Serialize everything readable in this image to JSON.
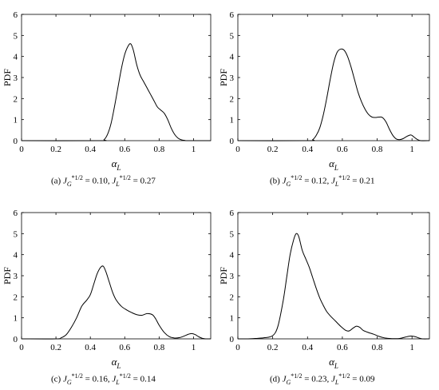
{
  "chart_data": [
    {
      "type": "line",
      "xlabel": "α",
      "xlabel_sub": "L",
      "ylabel": "PDF",
      "xlim": [
        0,
        1.1
      ],
      "ylim": [
        0,
        6
      ],
      "xticks": [
        "0",
        "0.2",
        "0.4",
        "0.6",
        "0.8",
        "1"
      ],
      "yticks": [
        "0",
        "1",
        "2",
        "3",
        "4",
        "5",
        "6"
      ],
      "caption": {
        "label": "(a)",
        "jg": "0.10",
        "jl": "0.27"
      },
      "series": [
        {
          "x": [
            0.45,
            0.48,
            0.5,
            0.52,
            0.54,
            0.56,
            0.58,
            0.6,
            0.62,
            0.635,
            0.65,
            0.67,
            0.69,
            0.71,
            0.73,
            0.75,
            0.77,
            0.79,
            0.81,
            0.83,
            0.85,
            0.87,
            0.89,
            0.91,
            0.93,
            0.95,
            0.97
          ],
          "y": [
            0,
            0.05,
            0.3,
            0.8,
            1.6,
            2.5,
            3.4,
            4.1,
            4.5,
            4.6,
            4.3,
            3.6,
            3.1,
            2.8,
            2.5,
            2.2,
            1.9,
            1.6,
            1.45,
            1.3,
            1.0,
            0.6,
            0.3,
            0.12,
            0.04,
            0.01,
            0
          ]
        }
      ]
    },
    {
      "type": "line",
      "xlabel": "α",
      "xlabel_sub": "L",
      "ylabel": "PDF",
      "xlim": [
        0,
        1.1
      ],
      "ylim": [
        0,
        6
      ],
      "xticks": [
        "0",
        "0.2",
        "0.4",
        "0.6",
        "0.8",
        "1"
      ],
      "yticks": [
        "0",
        "1",
        "2",
        "3",
        "4",
        "5",
        "6"
      ],
      "caption": {
        "label": "(b)",
        "jg": "0.12",
        "jl": "0.21"
      },
      "series": [
        {
          "x": [
            0.4,
            0.43,
            0.45,
            0.47,
            0.49,
            0.51,
            0.53,
            0.55,
            0.57,
            0.59,
            0.61,
            0.63,
            0.65,
            0.67,
            0.69,
            0.71,
            0.73,
            0.75,
            0.77,
            0.79,
            0.81,
            0.83,
            0.85,
            0.87,
            0.89,
            0.91,
            0.93,
            0.95,
            0.97,
            0.99,
            1.0,
            1.01,
            1.03,
            1.05
          ],
          "y": [
            0,
            0.05,
            0.25,
            0.6,
            1.2,
            2.0,
            2.9,
            3.7,
            4.2,
            4.35,
            4.3,
            4.0,
            3.5,
            2.9,
            2.3,
            1.85,
            1.5,
            1.25,
            1.12,
            1.1,
            1.12,
            1.1,
            0.9,
            0.55,
            0.25,
            0.08,
            0.05,
            0.1,
            0.2,
            0.27,
            0.25,
            0.18,
            0.06,
            0
          ]
        }
      ]
    },
    {
      "type": "line",
      "xlabel": "α",
      "xlabel_sub": "L",
      "ylabel": "PDF",
      "xlim": [
        0,
        1.1
      ],
      "ylim": [
        0,
        6
      ],
      "xticks": [
        "0",
        "0.2",
        "0.4",
        "0.6",
        "0.8",
        "1"
      ],
      "yticks": [
        "0",
        "1",
        "2",
        "3",
        "4",
        "5",
        "6"
      ],
      "caption": {
        "label": "(c)",
        "jg": "0.16",
        "jl": "0.14"
      },
      "series": [
        {
          "x": [
            0.2,
            0.23,
            0.26,
            0.29,
            0.32,
            0.35,
            0.38,
            0.4,
            0.42,
            0.44,
            0.46,
            0.475,
            0.49,
            0.51,
            0.53,
            0.55,
            0.58,
            0.61,
            0.64,
            0.67,
            0.7,
            0.73,
            0.76,
            0.78,
            0.8,
            0.83,
            0.86,
            0.89,
            0.92,
            0.95,
            0.97,
            0.99,
            1.01,
            1.03,
            1.05,
            1.07
          ],
          "y": [
            0,
            0.05,
            0.2,
            0.55,
            1.0,
            1.55,
            1.85,
            2.1,
            2.6,
            3.1,
            3.4,
            3.45,
            3.2,
            2.7,
            2.2,
            1.85,
            1.55,
            1.38,
            1.25,
            1.15,
            1.12,
            1.2,
            1.15,
            0.95,
            0.65,
            0.3,
            0.1,
            0.04,
            0.06,
            0.15,
            0.22,
            0.25,
            0.2,
            0.1,
            0.03,
            0
          ]
        }
      ]
    },
    {
      "type": "line",
      "xlabel": "α",
      "xlabel_sub": "L",
      "ylabel": "PDF",
      "xlim": [
        0,
        1.1
      ],
      "ylim": [
        0,
        6
      ],
      "xticks": [
        "0",
        "0.2",
        "0.4",
        "0.6",
        "0.8",
        "1"
      ],
      "yticks": [
        "0",
        "1",
        "2",
        "3",
        "4",
        "5",
        "6"
      ],
      "caption": {
        "label": "(d)",
        "jg": "0.23",
        "jl": "0.09"
      },
      "series": [
        {
          "x": [
            0.05,
            0.1,
            0.15,
            0.2,
            0.23,
            0.26,
            0.28,
            0.3,
            0.32,
            0.335,
            0.35,
            0.37,
            0.39,
            0.41,
            0.43,
            0.45,
            0.47,
            0.49,
            0.51,
            0.53,
            0.56,
            0.59,
            0.62,
            0.64,
            0.66,
            0.68,
            0.7,
            0.72,
            0.75,
            0.78,
            0.81,
            0.84,
            0.87,
            0.9,
            0.93,
            0.96,
            0.98,
            1.0,
            1.02,
            1.04,
            1.06
          ],
          "y": [
            0,
            0.02,
            0.05,
            0.15,
            0.6,
            1.8,
            2.9,
            4.0,
            4.7,
            5.0,
            4.85,
            4.2,
            3.8,
            3.4,
            2.9,
            2.4,
            1.95,
            1.6,
            1.3,
            1.1,
            0.85,
            0.6,
            0.4,
            0.38,
            0.5,
            0.6,
            0.55,
            0.4,
            0.3,
            0.22,
            0.12,
            0.05,
            0.02,
            0.01,
            0.02,
            0.08,
            0.12,
            0.13,
            0.1,
            0.04,
            0
          ]
        }
      ]
    }
  ]
}
